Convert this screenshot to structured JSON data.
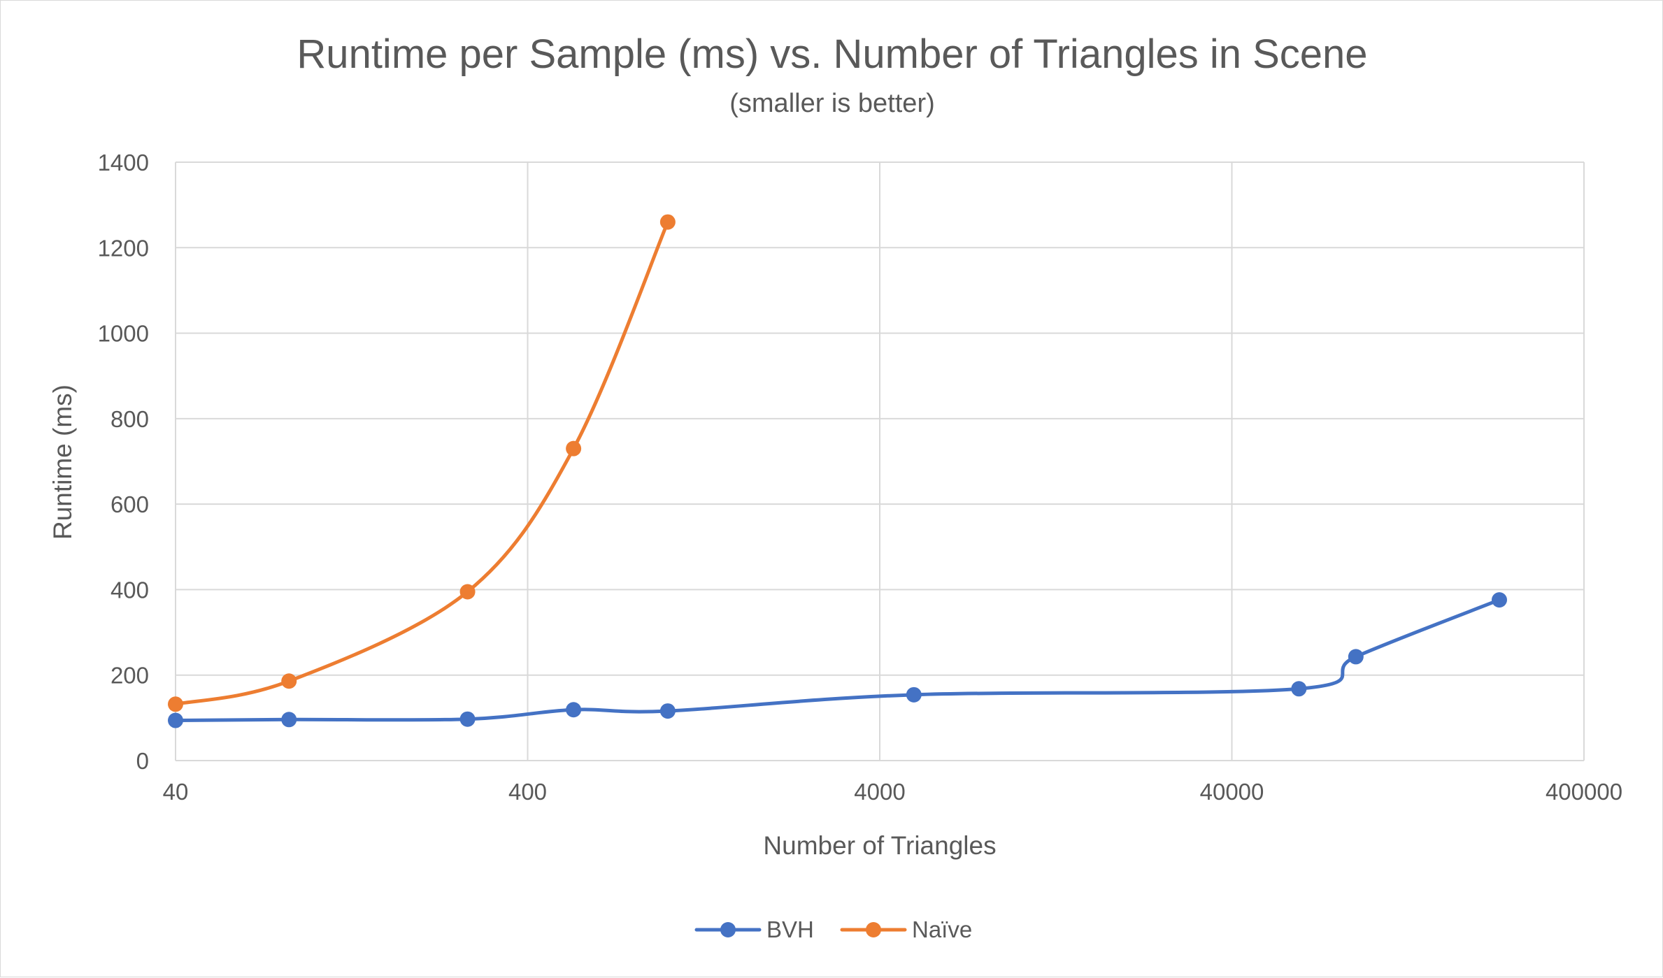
{
  "chart_data": {
    "type": "line",
    "title": "Runtime per Sample (ms) vs. Number of Triangles in Scene",
    "subtitle": "(smaller is better)",
    "xlabel": "Number of Triangles",
    "ylabel": "Runtime (ms)",
    "x_scale": "log",
    "xlim": [
      40,
      400000
    ],
    "ylim": [
      0,
      1400
    ],
    "x_ticks": [
      "40",
      "400",
      "4000",
      "40000",
      "400000"
    ],
    "y_ticks": [
      "0",
      "200",
      "400",
      "600",
      "800",
      "1000",
      "1200",
      "1400"
    ],
    "grid": true,
    "legend_position": "bottom",
    "series": [
      {
        "name": "BVH",
        "color": "#4472C4",
        "x": [
          40,
          84,
          270,
          540,
          1000,
          5000,
          62000,
          90000,
          230000
        ],
        "y": [
          94,
          96,
          97,
          119,
          116,
          154,
          168,
          243,
          376
        ]
      },
      {
        "name": "Naïve",
        "color": "#ED7D31",
        "x": [
          40,
          84,
          270,
          540,
          1000
        ],
        "y": [
          132,
          186,
          395,
          730,
          1260
        ]
      }
    ]
  }
}
